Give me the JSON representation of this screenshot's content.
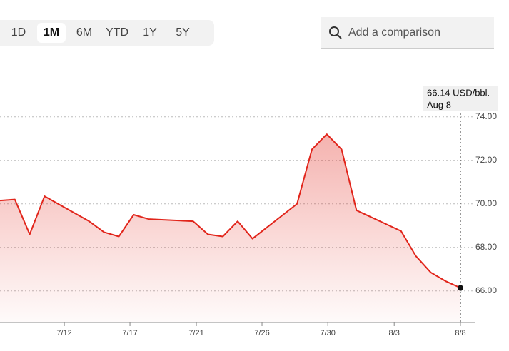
{
  "controls": {
    "ranges": [
      "1D",
      "1M",
      "6M",
      "YTD",
      "1Y",
      "5Y"
    ],
    "selected": "1M",
    "search_placeholder": "Add a comparison"
  },
  "chart_data": {
    "type": "area",
    "x": [
      0,
      1,
      2,
      3,
      6,
      7,
      8,
      9,
      10,
      13,
      14,
      15,
      16,
      17,
      20,
      21,
      22,
      23,
      24,
      27,
      28,
      29,
      30,
      31
    ],
    "series": [
      {
        "color": "#e1251b",
        "values": [
          70.15,
          70.2,
          68.6,
          70.35,
          69.2,
          68.7,
          68.5,
          69.5,
          69.3,
          69.2,
          68.6,
          68.5,
          69.2,
          68.4,
          70.0,
          72.5,
          73.2,
          72.5,
          69.7,
          68.75,
          67.6,
          66.85,
          66.45,
          66.14
        ]
      }
    ],
    "annotations": [
      "66.14 USD/bbl.",
      "Aug 8"
    ],
    "xlim": [
      0,
      31
    ],
    "xticks": [
      {
        "value": 4.33,
        "label": "7/12"
      },
      {
        "value": 8.75,
        "label": "7/17"
      },
      {
        "value": 13.22,
        "label": "7/21"
      },
      {
        "value": 17.64,
        "label": "7/26"
      },
      {
        "value": 22.07,
        "label": "7/30"
      },
      {
        "value": 26.54,
        "label": "8/3"
      },
      {
        "value": 31,
        "label": "8/8"
      }
    ],
    "ylim": [
      64.55,
      74.45
    ],
    "yticks": [
      {
        "value": 66,
        "label": "66.00"
      },
      {
        "value": 68,
        "label": "68.00"
      },
      {
        "value": 70,
        "label": "70.00"
      },
      {
        "value": 72,
        "label": "72.00"
      },
      {
        "value": 74,
        "label": "74.00"
      }
    ],
    "grid": true
  }
}
